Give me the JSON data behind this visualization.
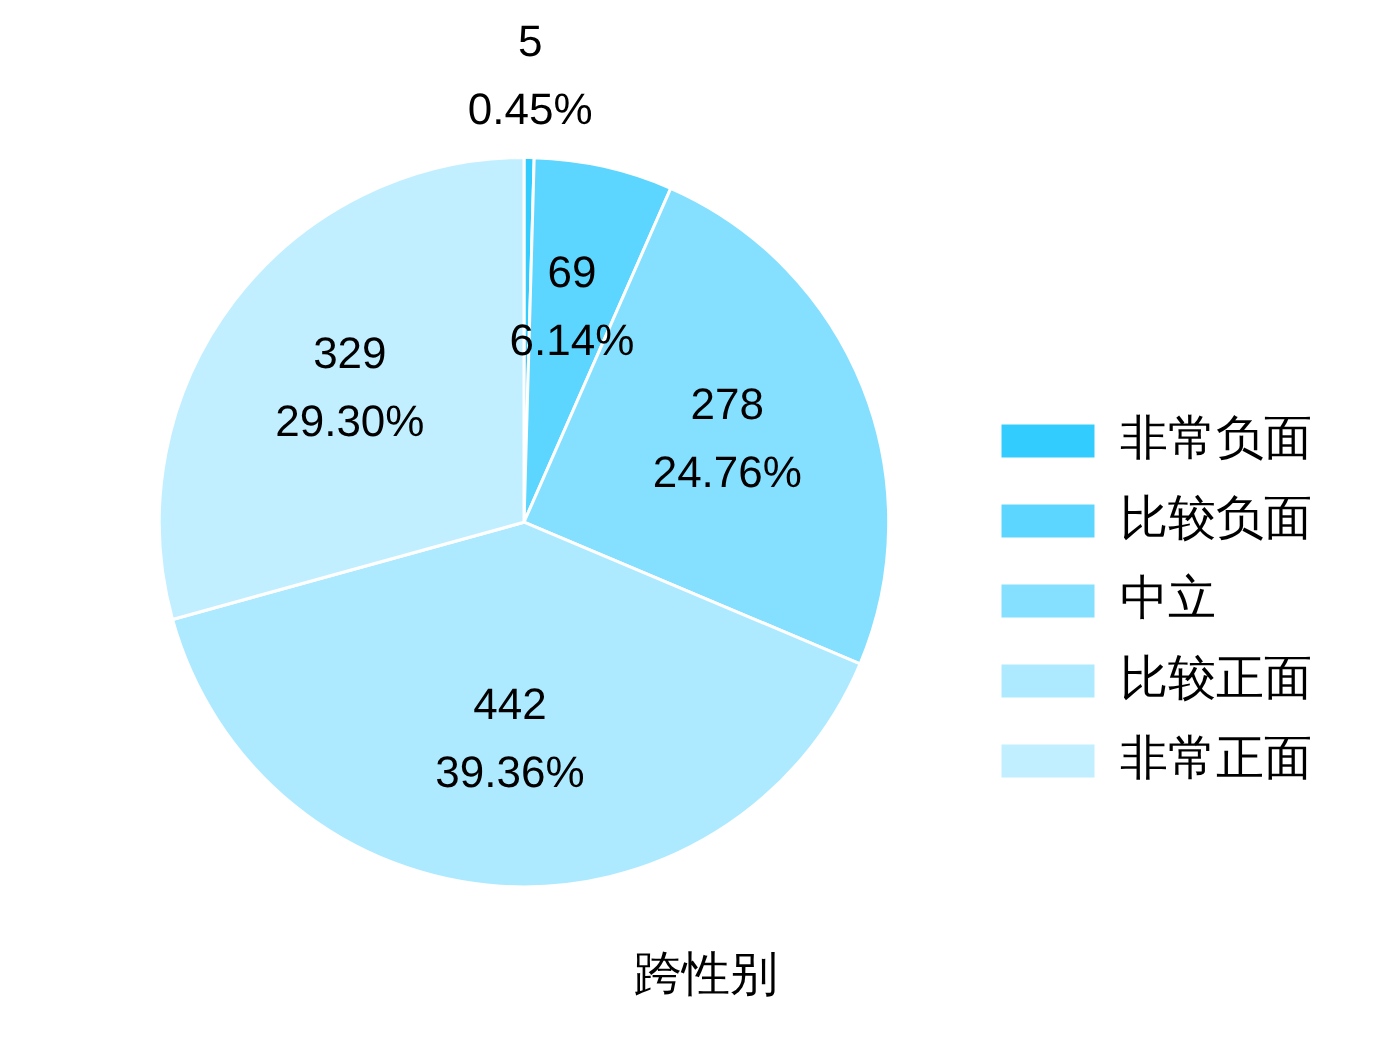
{
  "chart_data": {
    "type": "pie",
    "title": "跨性别",
    "categories": [
      "非常负面",
      "比较负面",
      "中立",
      "比较正面",
      "非常正面"
    ],
    "values": [
      5,
      69,
      278,
      442,
      329
    ],
    "colors": [
      "#33ccff",
      "#5cd6ff",
      "#85dfff",
      "#adeaff",
      "#c2efff"
    ],
    "value_labels": [
      "5\n0.45%",
      "69\n6.14%",
      "278\n24.76%",
      "442\n39.36%",
      "329\n29.30%"
    ],
    "legend": "right"
  }
}
